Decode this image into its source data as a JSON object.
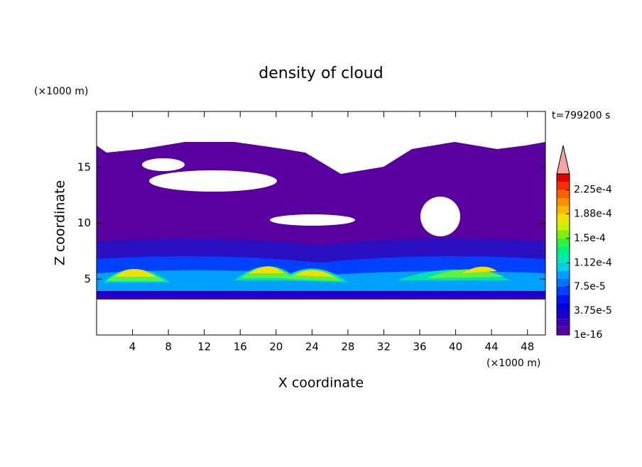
{
  "chart_data": {
    "type": "contour",
    "title": "density of cloud",
    "x_label": "X coordinate",
    "y_label": "Z coordinate",
    "x_unit": "(×1000 m)",
    "y_unit": "(×1000 m)",
    "time_label": "t=799200 s",
    "xlim": [
      0,
      50
    ],
    "xticks": [
      4,
      8,
      12,
      16,
      20,
      24,
      28,
      32,
      36,
      40,
      44,
      48
    ],
    "ylim": [
      0,
      20
    ],
    "yticks": [
      5,
      10,
      15
    ],
    "colorbar": {
      "lim": [
        0,
        0.00025
      ],
      "ticks": [
        {
          "value": 1e-16,
          "label": "1e-16"
        },
        {
          "value": 3.75e-05,
          "label": "3.75e-5"
        },
        {
          "value": 7.5e-05,
          "label": "7.5e-5"
        },
        {
          "value": 0.000112,
          "label": "1.12e-4"
        },
        {
          "value": 0.00015,
          "label": "1.5e-4"
        },
        {
          "value": 0.000188,
          "label": "1.88e-4"
        },
        {
          "value": 0.000225,
          "label": "2.25e-4"
        }
      ],
      "colors": [
        "#5a00a0",
        "#3c00b4",
        "#1e00c8",
        "#0000dc",
        "#0014f0",
        "#0040ff",
        "#0070ff",
        "#00a0ff",
        "#00d0e0",
        "#00e8b0",
        "#00f080",
        "#30f040",
        "#80f000",
        "#c8f000",
        "#f0e000",
        "#f8b800",
        "#f89000",
        "#f86000",
        "#f03000",
        "#e00000"
      ],
      "extend_color": "#f4a4a4"
    }
  }
}
